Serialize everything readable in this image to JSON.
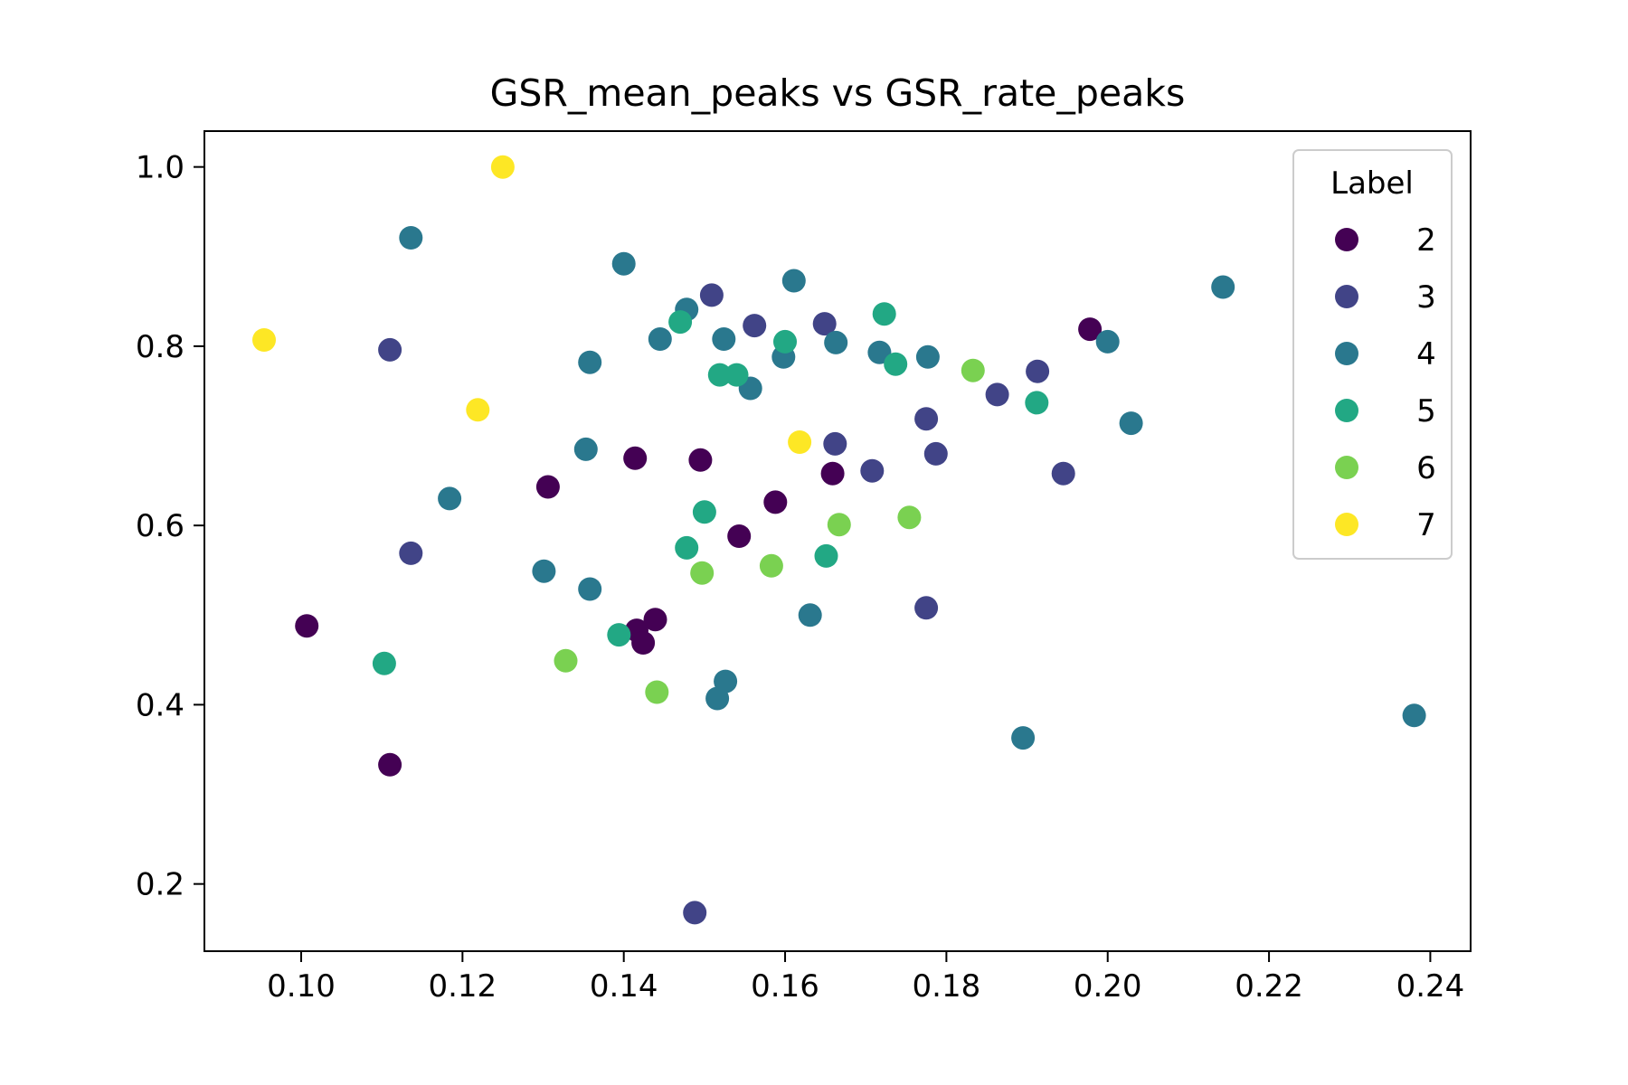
{
  "chart_data": {
    "type": "scatter",
    "title": "GSR_mean_peaks vs GSR_rate_peaks",
    "xlabel": "",
    "ylabel": "",
    "xlim": [
      0.088,
      0.245
    ],
    "ylim": [
      0.125,
      1.04
    ],
    "x_ticks": [
      0.1,
      0.12,
      0.14,
      0.16,
      0.18,
      0.2,
      0.22,
      0.24
    ],
    "x_tick_labels": [
      "0.10",
      "0.12",
      "0.14",
      "0.16",
      "0.18",
      "0.20",
      "0.22",
      "0.24"
    ],
    "y_ticks": [
      0.2,
      0.4,
      0.6,
      0.8,
      1.0
    ],
    "y_tick_labels": [
      "0.2",
      "0.4",
      "0.6",
      "0.8",
      "1.0"
    ],
    "grid": false,
    "legend": {
      "title": "Label",
      "position": "upper-right"
    },
    "series": [
      {
        "name": "2",
        "color": "#440154",
        "points": [
          [
            0.1007,
            0.488
          ],
          [
            0.111,
            0.333
          ],
          [
            0.1306,
            0.643
          ],
          [
            0.1414,
            0.675
          ],
          [
            0.1416,
            0.483
          ],
          [
            0.1424,
            0.469
          ],
          [
            0.1439,
            0.495
          ],
          [
            0.1495,
            0.673
          ],
          [
            0.1543,
            0.588
          ],
          [
            0.1588,
            0.626
          ],
          [
            0.1659,
            0.658
          ],
          [
            0.1978,
            0.819
          ]
        ]
      },
      {
        "name": "3",
        "color": "#414487",
        "points": [
          [
            0.111,
            0.796
          ],
          [
            0.1136,
            0.569
          ],
          [
            0.1488,
            0.168
          ],
          [
            0.1509,
            0.857
          ],
          [
            0.1562,
            0.823
          ],
          [
            0.1649,
            0.825
          ],
          [
            0.1662,
            0.691
          ],
          [
            0.1708,
            0.661
          ],
          [
            0.1775,
            0.719
          ],
          [
            0.1775,
            0.508
          ],
          [
            0.1787,
            0.68
          ],
          [
            0.1863,
            0.746
          ],
          [
            0.1913,
            0.772
          ],
          [
            0.1945,
            0.658
          ]
        ]
      },
      {
        "name": "4",
        "color": "#2a788e",
        "points": [
          [
            0.1136,
            0.921
          ],
          [
            0.1184,
            0.63
          ],
          [
            0.1301,
            0.549
          ],
          [
            0.1353,
            0.685
          ],
          [
            0.1358,
            0.782
          ],
          [
            0.1358,
            0.529
          ],
          [
            0.14,
            0.892
          ],
          [
            0.1445,
            0.808
          ],
          [
            0.1478,
            0.841
          ],
          [
            0.1516,
            0.407
          ],
          [
            0.1524,
            0.808
          ],
          [
            0.1526,
            0.426
          ],
          [
            0.1557,
            0.753
          ],
          [
            0.1598,
            0.788
          ],
          [
            0.1611,
            0.873
          ],
          [
            0.1631,
            0.5
          ],
          [
            0.1663,
            0.804
          ],
          [
            0.1717,
            0.793
          ],
          [
            0.1777,
            0.788
          ],
          [
            0.1895,
            0.363
          ],
          [
            0.2,
            0.805
          ],
          [
            0.2029,
            0.714
          ],
          [
            0.2143,
            0.866
          ],
          [
            0.238,
            0.388
          ]
        ]
      },
      {
        "name": "5",
        "color": "#22a884",
        "points": [
          [
            0.1103,
            0.446
          ],
          [
            0.1394,
            0.478
          ],
          [
            0.147,
            0.827
          ],
          [
            0.1478,
            0.575
          ],
          [
            0.15,
            0.615
          ],
          [
            0.1519,
            0.768
          ],
          [
            0.154,
            0.768
          ],
          [
            0.16,
            0.805
          ],
          [
            0.1651,
            0.566
          ],
          [
            0.1723,
            0.836
          ],
          [
            0.1737,
            0.78
          ],
          [
            0.1912,
            0.737
          ]
        ]
      },
      {
        "name": "6",
        "color": "#7ad151",
        "points": [
          [
            0.1328,
            0.449
          ],
          [
            0.1441,
            0.414
          ],
          [
            0.1497,
            0.547
          ],
          [
            0.1583,
            0.555
          ],
          [
            0.1667,
            0.601
          ],
          [
            0.1754,
            0.609
          ],
          [
            0.1833,
            0.773
          ]
        ]
      },
      {
        "name": "7",
        "color": "#fde725",
        "points": [
          [
            0.0954,
            0.807
          ],
          [
            0.1219,
            0.729
          ],
          [
            0.125,
            1.0
          ],
          [
            0.1618,
            0.693
          ]
        ]
      }
    ]
  }
}
